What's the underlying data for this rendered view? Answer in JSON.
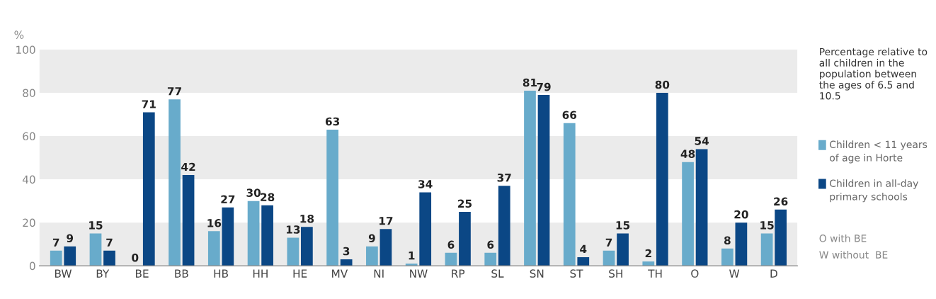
{
  "chart_data": {
    "type": "bar",
    "ylabel": "%",
    "legend_title": "Percentage relative to all children in the population between the ages of 6.5 and 10.5",
    "categories": [
      "BW",
      "BY",
      "BE",
      "BB",
      "HB",
      "HH",
      "HE",
      "MV",
      "NI",
      "NW",
      "RP",
      "SL",
      "SN",
      "ST",
      "SH",
      "TH",
      "O",
      "W",
      "D"
    ],
    "series": [
      {
        "name": "Children < 11 years of age in Horte",
        "color": "#68abcb",
        "values": [
          7,
          15,
          0,
          77,
          16,
          30,
          13,
          63,
          9,
          1,
          6,
          6,
          81,
          66,
          7,
          2,
          48,
          8,
          15
        ]
      },
      {
        "name": "Children in all-day primary schools",
        "color": "#0b4785",
        "values": [
          9,
          7,
          71,
          42,
          27,
          28,
          18,
          3,
          17,
          34,
          25,
          37,
          79,
          4,
          15,
          80,
          54,
          20,
          26
        ]
      }
    ],
    "ylim": [
      0,
      100
    ],
    "yticks": [
      0,
      20,
      40,
      60,
      80,
      100
    ],
    "bands": [
      {
        "axis": "y",
        "from": 0,
        "to": 20,
        "color": "#ebebeb"
      },
      {
        "axis": "y",
        "from": 40,
        "to": 60,
        "color": "#ebebeb"
      },
      {
        "axis": "y",
        "from": 80,
        "to": 100,
        "color": "#ebebeb"
      }
    ],
    "data_labels": true,
    "grid": false,
    "legend": "right",
    "annotations": [
      "O with BE",
      "W without  BE"
    ]
  }
}
